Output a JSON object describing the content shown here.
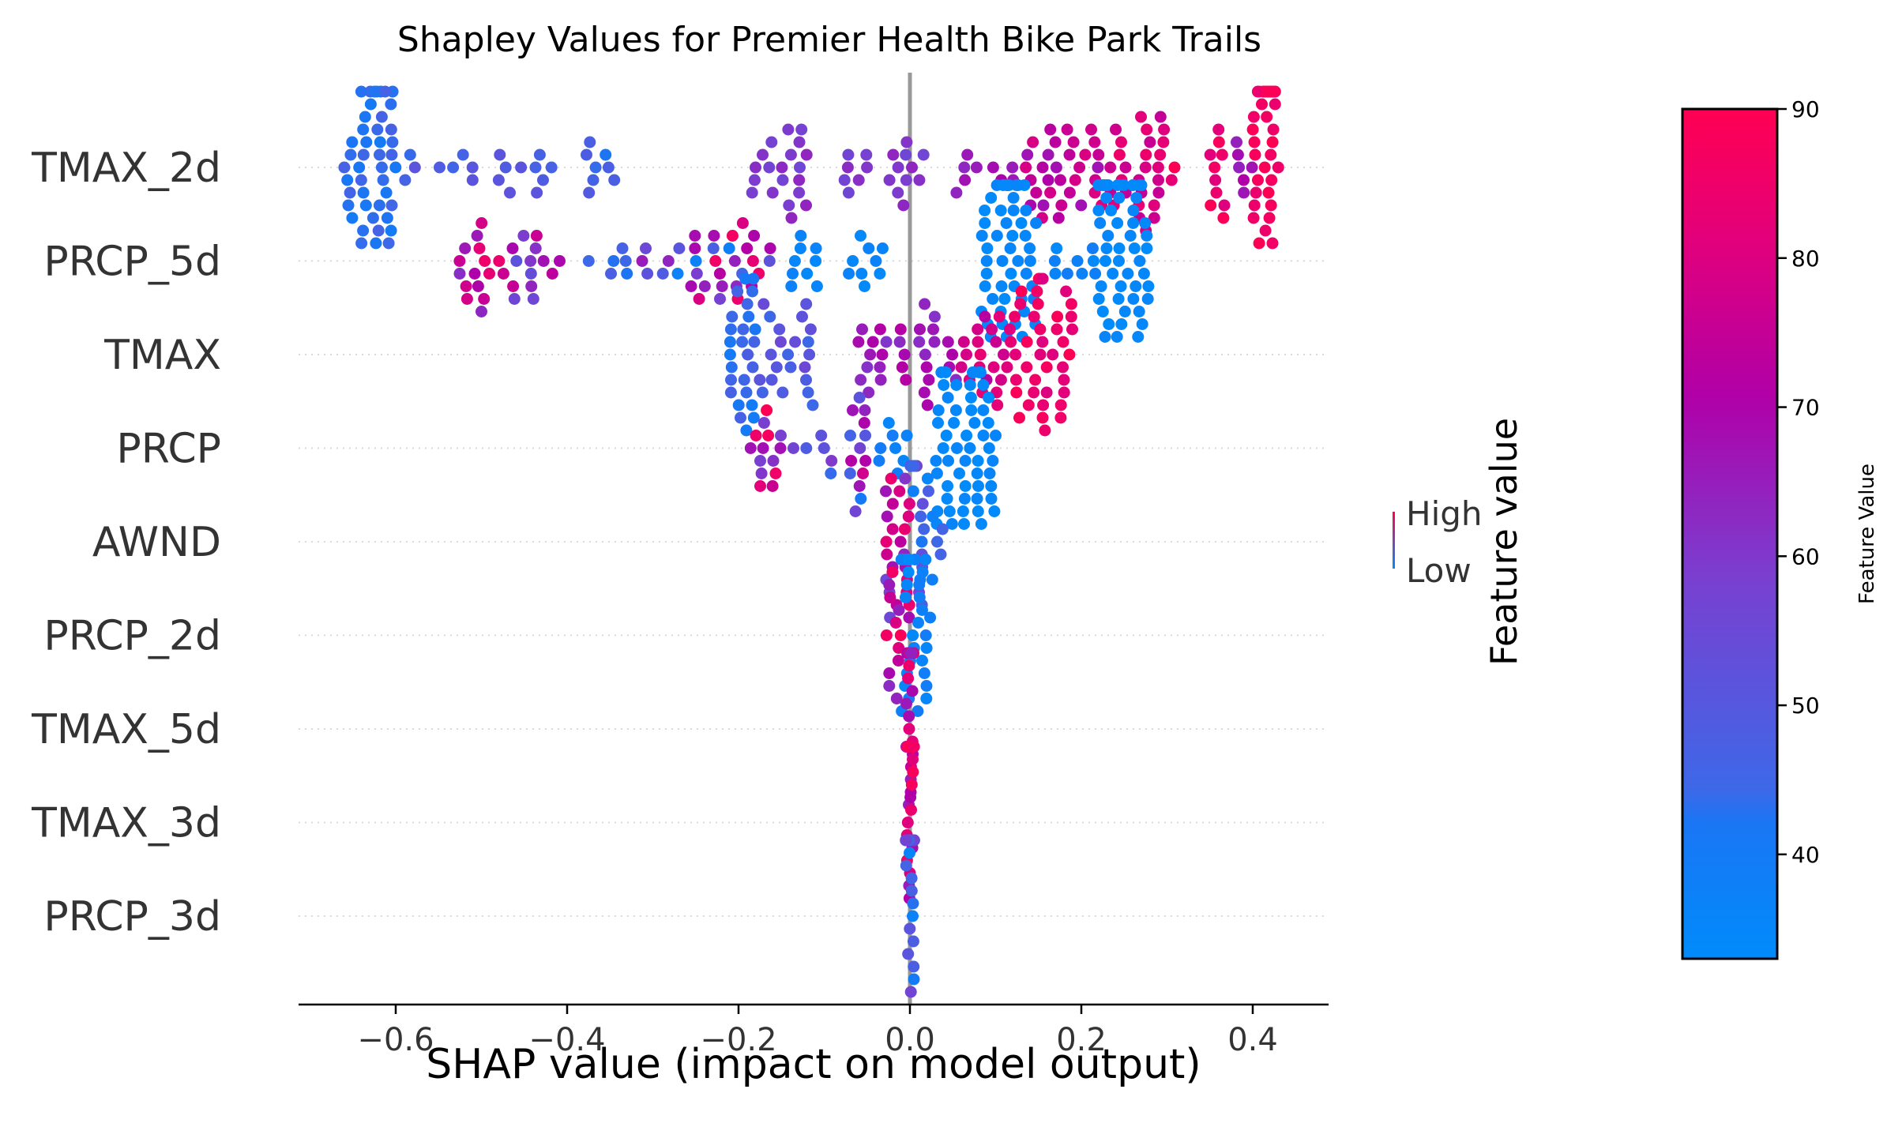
{
  "chart_data": {
    "type": "scatter",
    "subtype": "shap-beeswarm",
    "title": "Shapley Values for Premier Health Bike Park Trails",
    "xlabel": "SHAP value (impact on model output)",
    "xlim": [
      -0.72,
      0.49
    ],
    "xticks": [
      -0.6,
      -0.4,
      -0.2,
      0.0,
      0.2,
      0.4
    ],
    "xtick_labels": [
      "−0.6",
      "−0.4",
      "−0.2",
      "0.0",
      "0.2",
      "0.4"
    ],
    "zero_line": 0.0,
    "colorbar": {
      "label": "Feature Value",
      "range": [
        33,
        90
      ],
      "ticks": [
        40,
        50,
        60,
        70,
        80,
        90
      ],
      "tick_labels": [
        "40",
        "50",
        "60",
        "70",
        "80",
        "90"
      ],
      "colors": [
        "#008bfb",
        "#ff0052"
      ]
    },
    "legend": {
      "title": "Feature value",
      "high": "High",
      "low": "Low",
      "placement": "right"
    },
    "grid": "dotted row lines",
    "features": [
      {
        "name": "TMAX_2d",
        "ranges": [
          {
            "x": [
              -0.66,
              -0.6
            ],
            "v": [
              40,
              47
            ],
            "n": 45
          },
          {
            "x": [
              -0.59,
              -0.5
            ],
            "v": [
              44,
              52
            ],
            "n": 8
          },
          {
            "x": [
              -0.48,
              -0.41
            ],
            "v": [
              45,
              52
            ],
            "n": 10
          },
          {
            "x": [
              -0.38,
              -0.33
            ],
            "v": [
              42,
              50
            ],
            "n": 8
          },
          {
            "x": [
              -0.2,
              -0.12
            ],
            "v": [
              56,
              64
            ],
            "n": 20
          },
          {
            "x": [
              -0.08,
              0.02
            ],
            "v": [
              56,
              64
            ],
            "n": 18
          },
          {
            "x": [
              0.05,
              0.12
            ],
            "v": [
              62,
              70
            ],
            "n": 8
          },
          {
            "x": [
              0.12,
              0.22
            ],
            "v": [
              66,
              80
            ],
            "n": 32
          },
          {
            "x": [
              0.22,
              0.3
            ],
            "v": [
              74,
              86
            ],
            "n": 30
          },
          {
            "x": [
              0.3,
              0.37
            ],
            "v": [
              80,
              90
            ],
            "n": 12
          },
          {
            "x": [
              0.38,
              0.4
            ],
            "v": [
              64,
              76
            ],
            "n": 6
          },
          {
            "x": [
              0.4,
              0.43
            ],
            "v": [
              84,
              90
            ],
            "n": 42
          }
        ]
      },
      {
        "name": "PRCP_5d",
        "ranges": [
          {
            "x": [
              -0.54,
              -0.47
            ],
            "v": [
              58,
              90
            ],
            "n": 16
          },
          {
            "x": [
              -0.47,
              -0.4
            ],
            "v": [
              50,
              80
            ],
            "n": 14
          },
          {
            "x": [
              -0.38,
              -0.33
            ],
            "v": [
              42,
              50
            ],
            "n": 6
          },
          {
            "x": [
              -0.32,
              -0.16
            ],
            "v": [
              36,
              88
            ],
            "n": 34
          },
          {
            "x": [
              -0.14,
              -0.03
            ],
            "v": [
              34,
              38
            ],
            "n": 18
          },
          {
            "x": [
              0.08,
              0.14
            ],
            "v": [
              33,
              36
            ],
            "n": 45
          },
          {
            "x": [
              0.14,
              0.22
            ],
            "v": [
              34,
              40
            ],
            "n": 14
          },
          {
            "x": [
              0.22,
              0.28
            ],
            "v": [
              33,
              36
            ],
            "n": 55
          }
        ]
      },
      {
        "name": "TMAX",
        "ranges": [
          {
            "x": [
              -0.21,
              -0.18
            ],
            "v": [
              40,
              48
            ],
            "n": 26
          },
          {
            "x": [
              -0.18,
              -0.11
            ],
            "v": [
              44,
              56
            ],
            "n": 22
          },
          {
            "x": [
              -0.06,
              0.06
            ],
            "v": [
              60,
              72
            ],
            "n": 32
          },
          {
            "x": [
              0.06,
              0.12
            ],
            "v": [
              72,
              84
            ],
            "n": 22
          },
          {
            "x": [
              0.12,
              0.19
            ],
            "v": [
              80,
              90
            ],
            "n": 40
          }
        ]
      },
      {
        "name": "PRCP",
        "ranges": [
          {
            "x": [
              -0.19,
              -0.15
            ],
            "v": [
              50,
              90
            ],
            "n": 14
          },
          {
            "x": [
              -0.14,
              -0.08
            ],
            "v": [
              40,
              60
            ],
            "n": 6
          },
          {
            "x": [
              -0.07,
              -0.05
            ],
            "v": [
              40,
              85
            ],
            "n": 14
          },
          {
            "x": [
              -0.04,
              0.0
            ],
            "v": [
              34,
              40
            ],
            "n": 8
          },
          {
            "x": [
              0.03,
              0.1
            ],
            "v": [
              33,
              36
            ],
            "n": 55
          }
        ]
      },
      {
        "name": "AWND",
        "ranges": [
          {
            "x": [
              -0.03,
              0.0
            ],
            "v": [
              55,
              85
            ],
            "n": 24
          },
          {
            "x": [
              0.0,
              0.02
            ],
            "v": [
              34,
              60
            ],
            "n": 24
          },
          {
            "x": [
              0.02,
              0.04
            ],
            "v": [
              34,
              50
            ],
            "n": 8
          }
        ]
      },
      {
        "name": "PRCP_2d",
        "ranges": [
          {
            "x": [
              -0.03,
              -0.01
            ],
            "v": [
              60,
              90
            ],
            "n": 12
          },
          {
            "x": [
              -0.01,
              0.02
            ],
            "v": [
              33,
              40
            ],
            "n": 34
          }
        ]
      },
      {
        "name": "TMAX_5d",
        "ranges": [
          {
            "x": [
              -0.005,
              0.005
            ],
            "v": [
              60,
              86
            ],
            "n": 26
          }
        ]
      },
      {
        "name": "TMAX_3d",
        "ranges": [
          {
            "x": [
              -0.005,
              0.005
            ],
            "v": [
              62,
              90
            ],
            "n": 26
          }
        ]
      },
      {
        "name": "PRCP_3d",
        "ranges": [
          {
            "x": [
              -0.005,
              0.005
            ],
            "v": [
              34,
              60
            ],
            "n": 26
          }
        ]
      }
    ]
  }
}
